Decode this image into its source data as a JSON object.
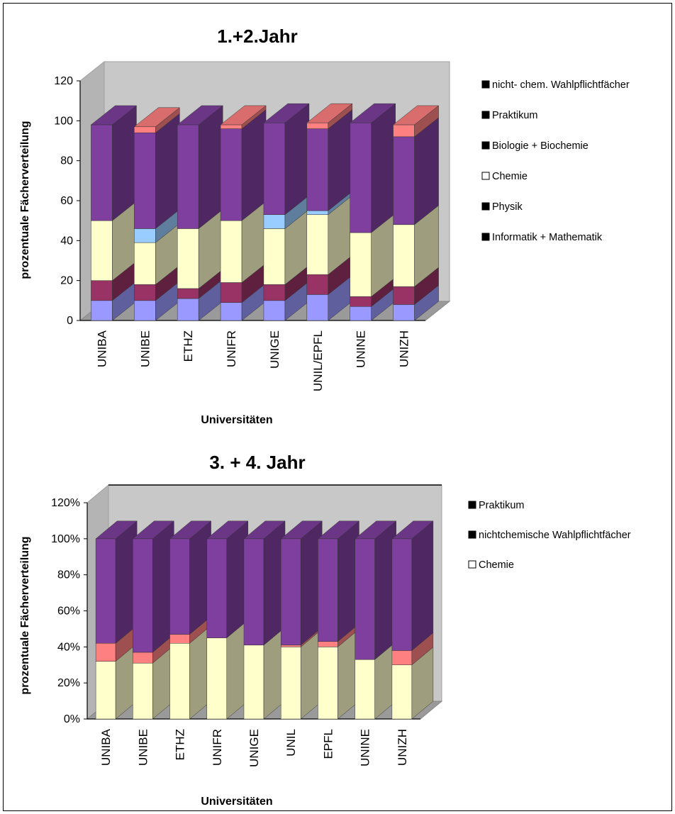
{
  "chart_data": [
    {
      "type": "bar",
      "stacked": true,
      "three_d": true,
      "title": "1.+2.Jahr",
      "xlabel": "Universitäten",
      "ylabel": "prozentuale Fächerverteilung",
      "ylim": [
        0,
        120
      ],
      "yticks": [
        "0",
        "20",
        "40",
        "60",
        "80",
        "100",
        "120"
      ],
      "categories": [
        "UNIBA",
        "UNIBE",
        "ETHZ",
        "UNIFR",
        "UNIGE",
        "UNIL/EPFL",
        "UNINE",
        "UNIZH"
      ],
      "legend_position": "right",
      "legend": [
        "nicht- chem. Wahlpflichtfächer",
        "Praktikum",
        "Biologie + Biochemie",
        "Chemie",
        "Physik",
        "Informatik + Mathematik"
      ],
      "series": [
        {
          "name": "Informatik + Mathematik",
          "color": "#9999ff",
          "values": [
            10,
            10,
            11,
            9,
            10,
            13,
            7,
            8
          ]
        },
        {
          "name": "Physik",
          "color": "#993366",
          "values": [
            10,
            8,
            5,
            10,
            8,
            10,
            5,
            9
          ]
        },
        {
          "name": "Chemie",
          "color": "#ffffcc",
          "values": [
            30,
            21,
            30,
            31,
            28,
            30,
            32,
            31
          ]
        },
        {
          "name": "Biologie + Biochemie",
          "color": "#99ccff",
          "values": [
            0,
            7,
            0,
            0,
            7,
            2,
            0,
            0
          ]
        },
        {
          "name": "nicht- chem. Wahlpflichtfächer",
          "color": "#7f3f9f",
          "values": [
            48,
            48,
            52,
            46,
            46,
            41,
            55,
            44
          ]
        },
        {
          "name": "Praktikum",
          "color": "#ff8080",
          "values": [
            0,
            3,
            0,
            2,
            0,
            3,
            0,
            6
          ]
        }
      ]
    },
    {
      "type": "bar",
      "stacked": true,
      "three_d": true,
      "title": "3. + 4. Jahr",
      "xlabel": "Universitäten",
      "ylabel": "prozentuale Fächerverteilung",
      "ylim": [
        0,
        120
      ],
      "yticks": [
        "0%",
        "20%",
        "40%",
        "60%",
        "80%",
        "100%",
        "120%"
      ],
      "categories": [
        "UNIBA",
        "UNIBE",
        "ETHZ",
        "UNIFR",
        "UNIGE",
        "UNIL",
        "EPFL",
        "UNINE",
        "UNIZH"
      ],
      "legend_position": "right",
      "legend": [
        "Praktikum",
        "nichtchemische Wahlpflichtfächer",
        "Chemie"
      ],
      "series": [
        {
          "name": "Chemie",
          "color": "#ffffcc",
          "values": [
            32,
            31,
            42,
            45,
            41,
            40,
            40,
            33,
            30
          ]
        },
        {
          "name": "Praktikum",
          "color": "#ff8080",
          "values": [
            10,
            6,
            5,
            0,
            0,
            1,
            3,
            0,
            8
          ]
        },
        {
          "name": "nichtchemische Wahlpflichtfächer",
          "color": "#7f3f9f",
          "values": [
            58,
            63,
            53,
            55,
            59,
            59,
            57,
            67,
            62
          ]
        }
      ]
    }
  ]
}
